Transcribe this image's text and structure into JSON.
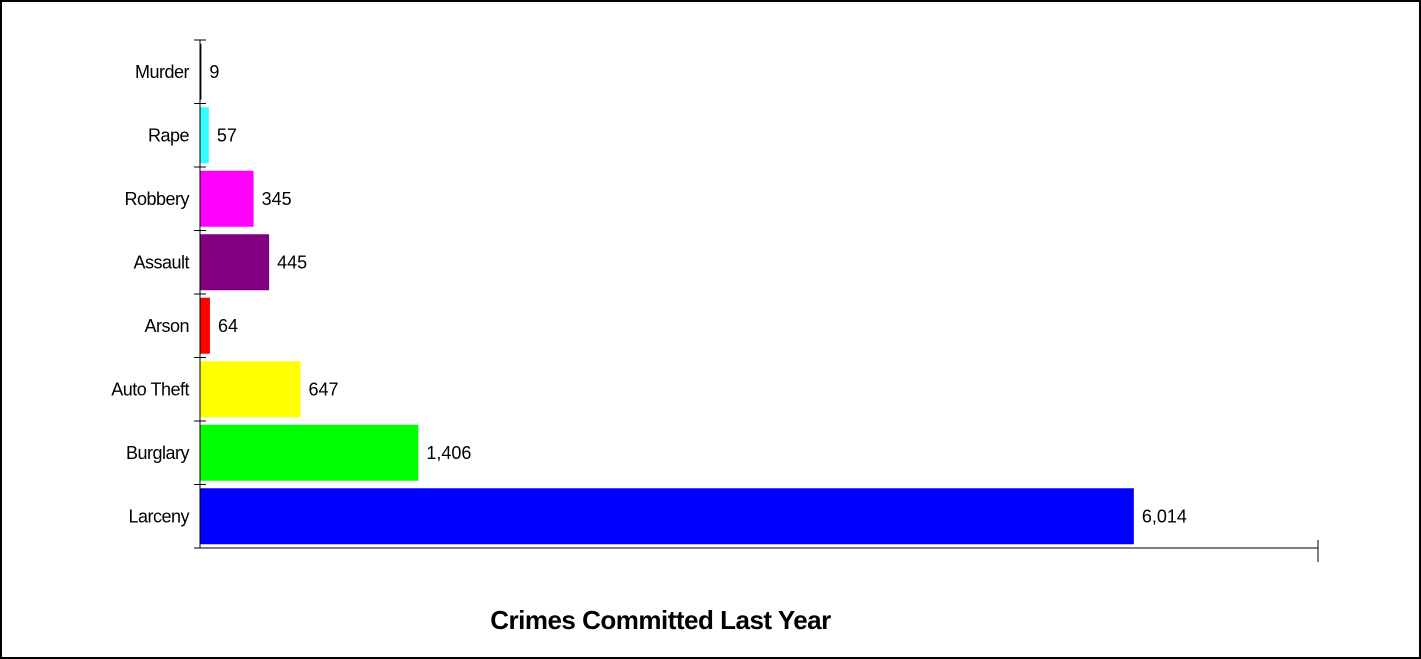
{
  "chart_data": {
    "type": "bar",
    "orientation": "horizontal",
    "title": "Crimes Committed Last Year",
    "xlabel": "",
    "ylabel": "",
    "xlim": [
      0,
      7200
    ],
    "grid": false,
    "legend": "none",
    "categories": [
      "Murder",
      "Rape",
      "Robbery",
      "Assault",
      "Arson",
      "Auto Theft",
      "Burglary",
      "Larceny"
    ],
    "values": [
      9,
      57,
      345,
      445,
      64,
      647,
      1406,
      6014
    ],
    "value_labels": [
      "9",
      "57",
      "345",
      "445",
      "64",
      "647",
      "1,406",
      "6,014"
    ],
    "colors": [
      "#000000",
      "#33ffff",
      "#ff00ff",
      "#800080",
      "#ff0000",
      "#ffff00",
      "#00ff00",
      "#0000ff"
    ]
  }
}
